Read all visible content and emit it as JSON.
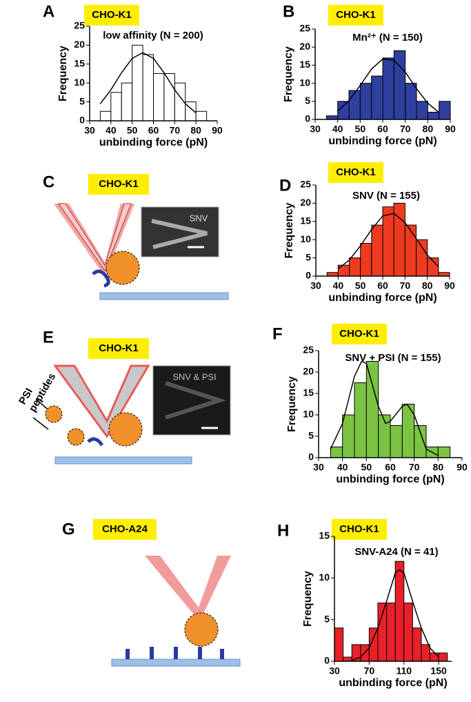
{
  "chart_data": [
    {
      "type": "histogram",
      "panel": "A",
      "badge": "CHO-K1",
      "annotation": "low affinity (N = 200)",
      "bins": [
        35,
        40,
        45,
        50,
        55,
        60,
        65,
        70,
        75,
        80,
        85
      ],
      "values": [
        2.5,
        7.5,
        10,
        20,
        17.5,
        12.5,
        12.5,
        10,
        5,
        2.5
      ],
      "color": "#ffffff",
      "fit": {
        "x": [
          35,
          40,
          45,
          50,
          55,
          60,
          65,
          70,
          75,
          80
        ],
        "values": [
          4.5,
          8.2,
          12.7,
          16.5,
          18,
          16.5,
          12.7,
          8.2,
          4.5,
          2.1
        ]
      },
      "xlim": [
        30,
        90
      ],
      "xticks": [
        30,
        40,
        50,
        60,
        70,
        80,
        90
      ],
      "ylim": [
        0,
        25
      ],
      "yticks": [
        0,
        5,
        10,
        15,
        20,
        25
      ],
      "xlabel": "unbinding force (pN)",
      "ylabel": "Frequency"
    },
    {
      "type": "histogram",
      "panel": "B",
      "badge": "CHO-K1",
      "annotation": "Mn²⁺ (N = 150)",
      "bins": [
        35,
        40,
        45,
        50,
        55,
        60,
        65,
        70,
        75,
        80,
        85,
        90
      ],
      "values": [
        1,
        5,
        8,
        10,
        12,
        17,
        19,
        10,
        5,
        2,
        5
      ],
      "color": "#2e3f9e",
      "fit": {
        "x": [
          40,
          45,
          50,
          55,
          60,
          65,
          70,
          75,
          80,
          85
        ],
        "values": [
          2.3,
          5.2,
          9.4,
          13.9,
          16.7,
          16.4,
          13.1,
          8.5,
          4.5,
          1.9
        ]
      },
      "xlim": [
        30,
        90
      ],
      "xticks": [
        30,
        40,
        50,
        60,
        70,
        80,
        90
      ],
      "ylim": [
        0,
        25
      ],
      "yticks": [
        0,
        5,
        10,
        15,
        20,
        25
      ],
      "xlabel": "unbinding force (pN)",
      "ylabel": "Frequency"
    },
    {
      "type": "histogram",
      "panel": "D",
      "badge": "CHO-K1",
      "annotation": "SNV (N = 155)",
      "bins": [
        35,
        40,
        45,
        50,
        55,
        60,
        65,
        70,
        75,
        80,
        85,
        90
      ],
      "values": [
        1,
        3,
        5,
        9,
        14,
        19,
        20,
        14,
        10,
        5,
        1
      ],
      "color": "#ee3b1f",
      "fit": {
        "x": [
          40,
          45,
          50,
          55,
          60,
          65,
          70,
          75,
          80,
          85
        ],
        "values": [
          2,
          4.4,
          8.3,
          12.8,
          16.5,
          17.2,
          14.7,
          10.3,
          5.8,
          2.6
        ]
      },
      "xlim": [
        30,
        90
      ],
      "xticks": [
        30,
        40,
        50,
        60,
        70,
        80,
        90
      ],
      "ylim": [
        0,
        25
      ],
      "yticks": [
        0,
        5,
        10,
        15,
        20,
        25
      ],
      "xlabel": "unbinding force (pN)",
      "ylabel": "Frequency"
    },
    {
      "type": "histogram",
      "panel": "F",
      "badge": "CHO-K1",
      "annotation": "SNV + PSI  (N = 155)",
      "bins": [
        35,
        40,
        45,
        50,
        55,
        60,
        65,
        70,
        75,
        80,
        85
      ],
      "values": [
        2.5,
        10,
        17.5,
        22.5,
        10,
        7.5,
        12.5,
        7.5,
        2.5,
        2.5
      ],
      "color": "#7cc243",
      "fit": {
        "x": [
          35,
          40,
          45,
          48,
          50,
          55,
          58,
          60,
          65,
          67,
          70,
          75,
          80
        ],
        "values": [
          2,
          8,
          19,
          22.5,
          22,
          12,
          8,
          8.5,
          12,
          12.5,
          10,
          2,
          0.5
        ]
      },
      "xlim": [
        30,
        90
      ],
      "xticks": [
        30,
        40,
        50,
        60,
        70,
        80,
        90
      ],
      "ylim": [
        0,
        25
      ],
      "yticks": [
        0,
        5,
        10,
        15,
        20,
        25
      ],
      "xlabel": "unbinding force (pN)",
      "ylabel": "Frequency"
    },
    {
      "type": "histogram",
      "panel": "H",
      "badge": "CHO-K1",
      "annotation": "SNV-A24 (N = 41)",
      "bins": [
        30,
        40,
        50,
        60,
        70,
        80,
        90,
        100,
        110,
        120,
        130,
        140,
        150,
        160
      ],
      "values": [
        4,
        0.5,
        2,
        2,
        4,
        7,
        7,
        12,
        7,
        4,
        2,
        1,
        1
      ],
      "color": "#e8202a",
      "fit": {
        "x": [
          50,
          60,
          70,
          80,
          90,
          100,
          105,
          110,
          120,
          130,
          140,
          150
        ],
        "values": [
          0.1,
          0.5,
          1.6,
          4,
          7.2,
          10.6,
          11,
          10.6,
          7.2,
          4,
          1.6,
          0.5
        ]
      },
      "xlim": [
        30,
        165
      ],
      "xticks": [
        30,
        70,
        110,
        150
      ],
      "ylim": [
        0,
        15
      ],
      "yticks": [
        0,
        5,
        10,
        15
      ],
      "xlabel": "unbinding force (pN)",
      "ylabel": "Frequency"
    }
  ],
  "diagrams": [
    {
      "panel": "C",
      "badge": "CHO-K1",
      "image_label": "SNV"
    },
    {
      "panel": "E",
      "badge": "CHO-K1",
      "image_label": "SNV & PSI",
      "arrow_label": [
        "PSI",
        "peptides"
      ]
    },
    {
      "panel": "G",
      "badge": "CHO-A24"
    }
  ]
}
